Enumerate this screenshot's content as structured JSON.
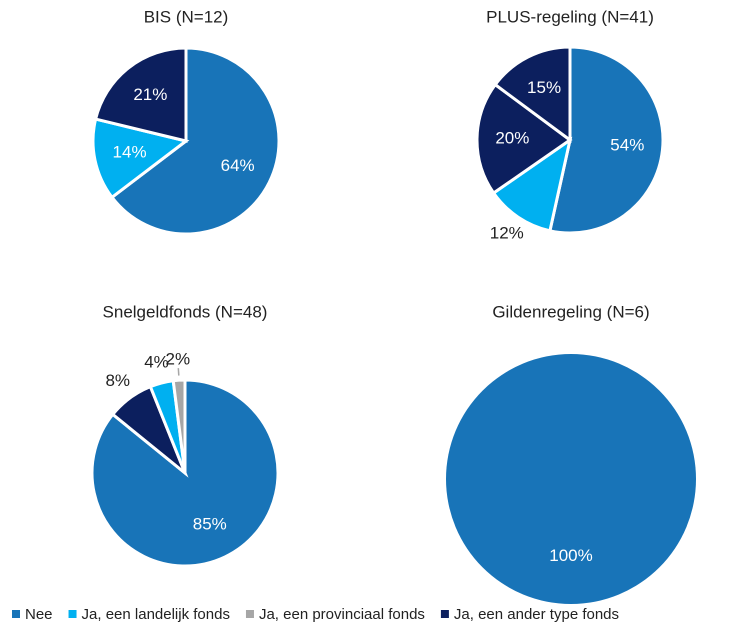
{
  "legend": {
    "series": [
      {
        "name": "Nee",
        "color": "#1874b8"
      },
      {
        "name": "Ja, een landelijk fonds",
        "color": "#00b0f0"
      },
      {
        "name": "Ja, een provinciaal fonds",
        "color": "#a6a6a6"
      },
      {
        "name": "Ja, een ander type fonds",
        "color": "#0c1f5e"
      }
    ]
  },
  "chart_data": [
    {
      "type": "pie",
      "title": "BIS (N=12)",
      "values": [
        64,
        14,
        21
      ],
      "value_labels": [
        "64%",
        "14%",
        "21%"
      ],
      "colors": [
        "#1874b8",
        "#00b0f0",
        "#0c1f5e"
      ]
    },
    {
      "type": "pie",
      "title": "PLUS-regeling (N=41)",
      "values": [
        54,
        12,
        20,
        15
      ],
      "value_labels": [
        "54%",
        "12%",
        "20%",
        "15%"
      ],
      "colors": [
        "#1874b8",
        "#00b0f0",
        "#0c1f5e",
        "#0c1f5e"
      ]
    },
    {
      "type": "pie",
      "title": "Snelgeldfonds (N=48)",
      "values": [
        85,
        8,
        4,
        2
      ],
      "value_labels": [
        "85%",
        "8%",
        "4%",
        "2%"
      ],
      "colors": [
        "#1874b8",
        "#0c1f5e",
        "#00b0f0",
        "#a6a6a6"
      ]
    },
    {
      "type": "pie",
      "title": "Gildenregeling (N=6)",
      "values": [
        100
      ],
      "value_labels": [
        "100%"
      ],
      "colors": [
        "#1874b8"
      ]
    }
  ]
}
